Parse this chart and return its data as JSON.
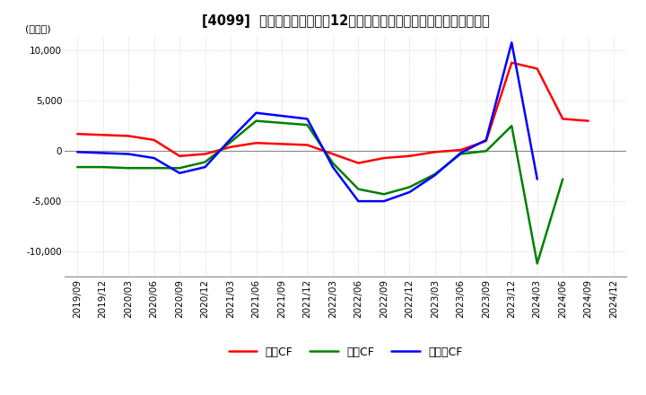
{
  "title": "[4099]  キャッシュフローの12か月移動合計の対前年同期増減額の推移",
  "ylabel": "(百万円)",
  "ylim": [
    -12500,
    11500
  ],
  "yticks": [
    -10000,
    -5000,
    0,
    5000,
    10000
  ],
  "legend_labels": [
    "営業CF",
    "投資CF",
    "フリーCF"
  ],
  "line_colors": [
    "#ff0000",
    "#008000",
    "#0000ff"
  ],
  "x_labels": [
    "2019/09",
    "2019/12",
    "2020/03",
    "2020/06",
    "2020/09",
    "2020/12",
    "2021/03",
    "2021/06",
    "2021/09",
    "2021/12",
    "2022/03",
    "2022/06",
    "2022/09",
    "2022/12",
    "2023/03",
    "2023/06",
    "2023/09",
    "2023/12",
    "2024/03",
    "2024/06",
    "2024/09",
    "2024/12"
  ],
  "ei_CF": [
    1700,
    1600,
    1500,
    1100,
    -500,
    -300,
    400,
    800,
    700,
    600,
    -300,
    -1200,
    -700,
    -500,
    -100,
    100,
    1000,
    8800,
    8200,
    3200,
    3000,
    null
  ],
  "to_CF": [
    -1600,
    -1600,
    -1700,
    -1700,
    -1700,
    -1100,
    900,
    3000,
    2800,
    2600,
    -1200,
    -3800,
    -4300,
    -3600,
    -2300,
    -300,
    0,
    2500,
    -11200,
    -2800,
    null,
    null
  ],
  "fr_CF": [
    -100,
    -200,
    -300,
    -700,
    -2200,
    -1600,
    1200,
    3800,
    3500,
    3200,
    -1600,
    -5000,
    -5000,
    -4100,
    -2400,
    -200,
    1100,
    10800,
    -2800,
    null,
    null,
    null
  ],
  "grid_color": "#cccccc",
  "grid_style": "dotted",
  "background_color": "#ffffff",
  "title_fontsize": 10.5,
  "tick_fontsize": 7.5,
  "ylabel_fontsize": 8,
  "legend_fontsize": 9,
  "linewidth": 1.8
}
